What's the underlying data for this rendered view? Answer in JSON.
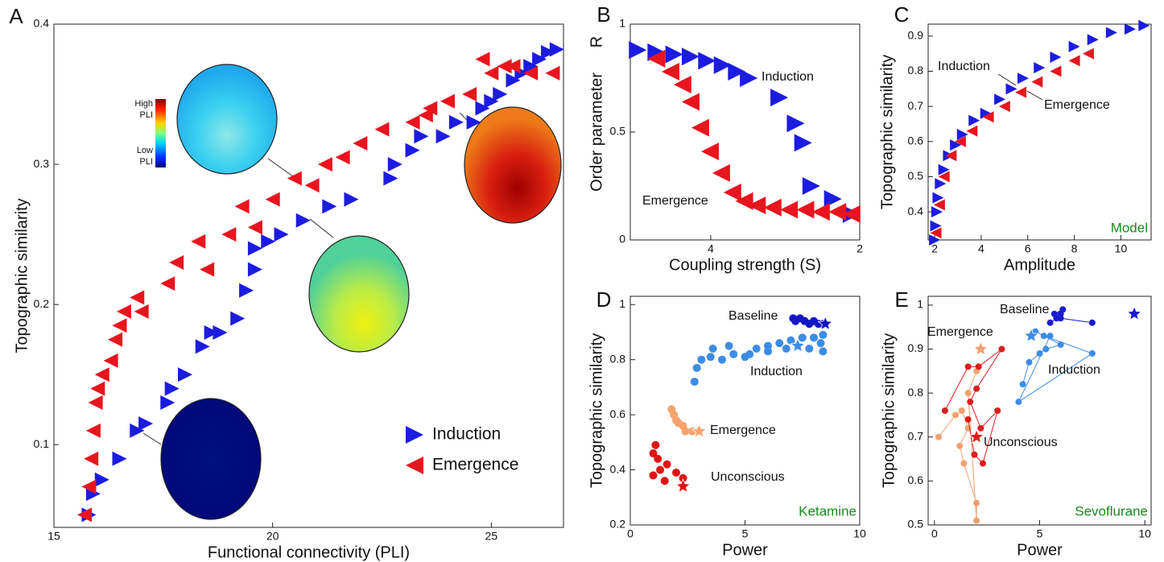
{
  "chart_data": [
    {
      "type": "scatter",
      "label": "A",
      "x_label": "Functional connectivity (PLI)",
      "y_label": "Topographic similarity",
      "xlim": [
        15,
        26.65
      ],
      "ylim": [
        0.041,
        0.4
      ],
      "xticks": [
        15,
        20,
        25
      ],
      "yticks": [
        0.1,
        0.2,
        0.3,
        0.4
      ],
      "legend": "lower right",
      "colorbar": {
        "high": [
          "High",
          "PLI"
        ],
        "low": [
          "Low",
          "PLI"
        ]
      },
      "series": [
        {
          "name": "Induction",
          "color": "#1c1ce0",
          "marker": "triangle-right",
          "x": [
            15.8,
            15.9,
            16.1,
            16.5,
            16.9,
            17.1,
            17.6,
            17.7,
            18.0,
            18.4,
            18.6,
            18.8,
            19.2,
            19.4,
            19.6,
            19.6,
            19.9,
            20.2,
            20.7,
            21.3,
            21.8,
            22.7,
            22.8,
            23.2,
            23.4,
            23.9,
            24.2,
            24.6,
            24.8,
            25.0,
            25.2,
            25.5,
            25.7,
            25.9,
            26.1,
            26.3,
            26.5
          ],
          "y": [
            0.05,
            0.065,
            0.075,
            0.09,
            0.11,
            0.115,
            0.13,
            0.14,
            0.15,
            0.17,
            0.18,
            0.18,
            0.19,
            0.21,
            0.225,
            0.24,
            0.245,
            0.25,
            0.26,
            0.27,
            0.275,
            0.29,
            0.3,
            0.31,
            0.32,
            0.32,
            0.33,
            0.33,
            0.34,
            0.345,
            0.35,
            0.36,
            0.365,
            0.37,
            0.375,
            0.38,
            0.382
          ]
        },
        {
          "name": "Emergence",
          "color": "#e8141e",
          "marker": "triangle-left",
          "x": [
            15.7,
            15.8,
            15.85,
            15.9,
            15.95,
            16.0,
            16.1,
            16.3,
            16.4,
            16.5,
            16.6,
            16.9,
            17.0,
            17.6,
            17.8,
            18.3,
            18.5,
            19.0,
            19.3,
            19.6,
            20.0,
            20.5,
            20.9,
            21.2,
            21.6,
            22.0,
            22.5,
            23.2,
            23.5,
            24.0,
            24.5,
            25.0,
            25.3,
            25.5,
            25.9,
            26.4,
            24.8,
            23.6
          ],
          "y": [
            0.05,
            0.07,
            0.09,
            0.11,
            0.13,
            0.14,
            0.15,
            0.16,
            0.175,
            0.185,
            0.195,
            0.205,
            0.195,
            0.215,
            0.23,
            0.245,
            0.225,
            0.25,
            0.27,
            0.255,
            0.275,
            0.29,
            0.285,
            0.3,
            0.305,
            0.315,
            0.325,
            0.33,
            0.335,
            0.345,
            0.35,
            0.365,
            0.37,
            0.37,
            0.365,
            0.365,
            0.375,
            0.34
          ]
        }
      ]
    },
    {
      "type": "scatter",
      "label": "B",
      "x_label": "Coupling strength (S)",
      "y_label": "Order parameter",
      "y_symbol": "R",
      "xlim": [
        5.08,
        2
      ],
      "ylim": [
        0,
        1
      ],
      "xticks": [
        4,
        2
      ],
      "yticks": [
        0,
        0.5,
        1
      ],
      "annotations": [
        "Induction",
        "Emergence"
      ],
      "series": [
        {
          "name": "Induction",
          "color": "#1c1ce0",
          "marker": "triangle-right",
          "x": [
            4.98,
            4.73,
            4.49,
            4.27,
            4.05,
            3.84,
            3.65,
            3.49,
            3.08,
            2.86,
            2.76,
            2.65,
            2.36,
            2.11
          ],
          "y": [
            0.88,
            0.87,
            0.86,
            0.85,
            0.83,
            0.81,
            0.78,
            0.75,
            0.66,
            0.54,
            0.45,
            0.25,
            0.19,
            0.12
          ]
        },
        {
          "name": "Emergence",
          "color": "#e8141e",
          "marker": "triangle-left",
          "x": [
            4.73,
            4.54,
            4.38,
            4.27,
            4.14,
            4.01,
            3.86,
            3.71,
            3.55,
            3.38,
            3.17,
            2.95,
            2.73,
            2.52,
            2.3,
            2.11
          ],
          "y": [
            0.84,
            0.78,
            0.72,
            0.64,
            0.52,
            0.41,
            0.31,
            0.22,
            0.18,
            0.16,
            0.15,
            0.14,
            0.14,
            0.13,
            0.13,
            0.12
          ]
        }
      ]
    },
    {
      "type": "scatter",
      "label": "C",
      "x_label": "Amplitude",
      "y_label": "Topographic similarity",
      "xlim": [
        1.72,
        11.3
      ],
      "ylim": [
        0.32,
        0.934
      ],
      "xticks": [
        2,
        4,
        6,
        8,
        10
      ],
      "yticks": [
        0.4,
        0.5,
        0.6,
        0.7,
        0.8,
        0.9
      ],
      "annotations": [
        "Induction",
        "Emergence"
      ],
      "note": "Model",
      "series": [
        {
          "name": "Induction",
          "color": "#1c1ce0",
          "marker": "triangle-right",
          "x": [
            2,
            2.05,
            2.1,
            2.15,
            2.25,
            2.4,
            2.6,
            2.9,
            3.2,
            3.7,
            4.2,
            4.8,
            5.3,
            5.8,
            6.5,
            7.2,
            8.0,
            8.8,
            9.6,
            10.4,
            11.0
          ],
          "y": [
            0.32,
            0.36,
            0.4,
            0.44,
            0.48,
            0.52,
            0.56,
            0.59,
            0.62,
            0.66,
            0.68,
            0.72,
            0.75,
            0.78,
            0.81,
            0.84,
            0.87,
            0.89,
            0.91,
            0.92,
            0.93
          ]
        },
        {
          "name": "Emergence",
          "color": "#e8141e",
          "marker": "triangle-left",
          "x": [
            2.05,
            2.2,
            2.4,
            2.7,
            3.1,
            3.6,
            4.3,
            5.0,
            5.7,
            6.4,
            7.2,
            8.0,
            8.6
          ],
          "y": [
            0.34,
            0.42,
            0.5,
            0.56,
            0.6,
            0.63,
            0.67,
            0.7,
            0.74,
            0.77,
            0.8,
            0.83,
            0.85
          ]
        }
      ]
    },
    {
      "type": "scatter",
      "label": "D",
      "x_label": "Power",
      "y_label": "Topographic similarity",
      "xlim": [
        0,
        10
      ],
      "ylim": [
        0.2,
        1.03
      ],
      "xticks": [
        0,
        5,
        10
      ],
      "yticks": [
        0.2,
        0.4,
        0.6,
        0.8,
        1
      ],
      "note": "Ketamine",
      "series": [
        {
          "name": "Baseline",
          "color": "#1414c8",
          "marker": "circle",
          "x": [
            7.1,
            7.2,
            7.4,
            7.6,
            7.8,
            8.0,
            8.2,
            8.4
          ],
          "y": [
            0.95,
            0.94,
            0.95,
            0.94,
            0.93,
            0.94,
            0.93,
            0.93
          ],
          "star": {
            "x": 8.5,
            "y": 0.93
          }
        },
        {
          "name": "Induction",
          "color": "#3c8ce6",
          "marker": "circle",
          "x": [
            2.8,
            2.9,
            3.1,
            3.5,
            4.0,
            4.5,
            5.0,
            5.5,
            6.0,
            6.5,
            7.0,
            7.5,
            8.0,
            8.4,
            8.3,
            8.4,
            7.8,
            6.8,
            6.0,
            5.2,
            4.3,
            3.6
          ],
          "y": [
            0.72,
            0.77,
            0.8,
            0.81,
            0.8,
            0.82,
            0.81,
            0.84,
            0.85,
            0.86,
            0.87,
            0.88,
            0.88,
            0.89,
            0.86,
            0.83,
            0.84,
            0.84,
            0.83,
            0.82,
            0.85,
            0.84
          ],
          "star": {
            "x": 7.3,
            "y": 0.85
          }
        },
        {
          "name": "Emergence",
          "color": "#f4a46c",
          "marker": "circle",
          "x": [
            1.8,
            1.9,
            2.0,
            2.1,
            2.3,
            2.4,
            2.7
          ],
          "y": [
            0.62,
            0.6,
            0.58,
            0.57,
            0.56,
            0.54,
            0.54
          ],
          "star": {
            "x": 3.0,
            "y": 0.54
          }
        },
        {
          "name": "Unconscious",
          "color": "#e01414",
          "marker": "circle",
          "x": [
            1.1,
            1.0,
            1.2,
            1.6,
            1.3,
            1.0,
            1.5,
            2.0,
            2.3
          ],
          "y": [
            0.49,
            0.46,
            0.44,
            0.42,
            0.4,
            0.38,
            0.36,
            0.39,
            0.37
          ],
          "star": {
            "x": 2.3,
            "y": 0.34
          }
        }
      ]
    },
    {
      "type": "scatter",
      "label": "E",
      "x_label": "Power",
      "y_label": "Topographic similarity",
      "connect": true,
      "xlim": [
        -0.3,
        10.3
      ],
      "ylim": [
        0.5,
        1.02
      ],
      "xticks": [
        0,
        5,
        10
      ],
      "yticks": [
        0.5,
        0.6,
        0.7,
        0.8,
        0.9,
        1
      ],
      "note": "Sevoflurane",
      "series": [
        {
          "name": "Baseline",
          "color": "#1a1ad0",
          "marker": "circle",
          "x": [
            5.5,
            5.8,
            6.0,
            6.1,
            5.7,
            6.0,
            7.5
          ],
          "y": [
            0.96,
            0.97,
            0.98,
            0.99,
            0.98,
            0.97,
            0.96
          ],
          "star": {
            "x": 9.5,
            "y": 0.98
          }
        },
        {
          "name": "Induction",
          "color": "#3c8ce6",
          "marker": "circle",
          "x": [
            4.2,
            4.5,
            5.0,
            5.3,
            6.0,
            4.8,
            5.2,
            7.5,
            4.0,
            5.5
          ],
          "y": [
            0.82,
            0.87,
            0.89,
            0.9,
            0.91,
            0.94,
            0.93,
            0.89,
            0.78,
            0.93
          ],
          "star": {
            "x": 4.6,
            "y": 0.93
          }
        },
        {
          "name": "Emergence",
          "color": "#f4a070",
          "marker": "circle",
          "x": [
            0.2,
            1.0,
            1.3,
            1.6,
            1.2,
            1.4,
            2.0,
            2.0,
            1.6,
            2.0
          ],
          "y": [
            0.7,
            0.75,
            0.76,
            0.72,
            0.68,
            0.64,
            0.55,
            0.51,
            0.8,
            0.85
          ],
          "star": {
            "x": 2.2,
            "y": 0.9
          }
        },
        {
          "name": "Unconscious",
          "color": "#dc1e1e",
          "marker": "circle",
          "x": [
            0.5,
            1.6,
            2.1,
            3.2,
            2.0,
            1.7,
            2.2,
            3.0,
            2.3,
            1.9,
            1.6
          ],
          "y": [
            0.76,
            0.86,
            0.86,
            0.9,
            0.81,
            0.78,
            0.72,
            0.76,
            0.64,
            0.66,
            0.74
          ],
          "star": {
            "x": 2.0,
            "y": 0.7
          }
        }
      ]
    }
  ]
}
